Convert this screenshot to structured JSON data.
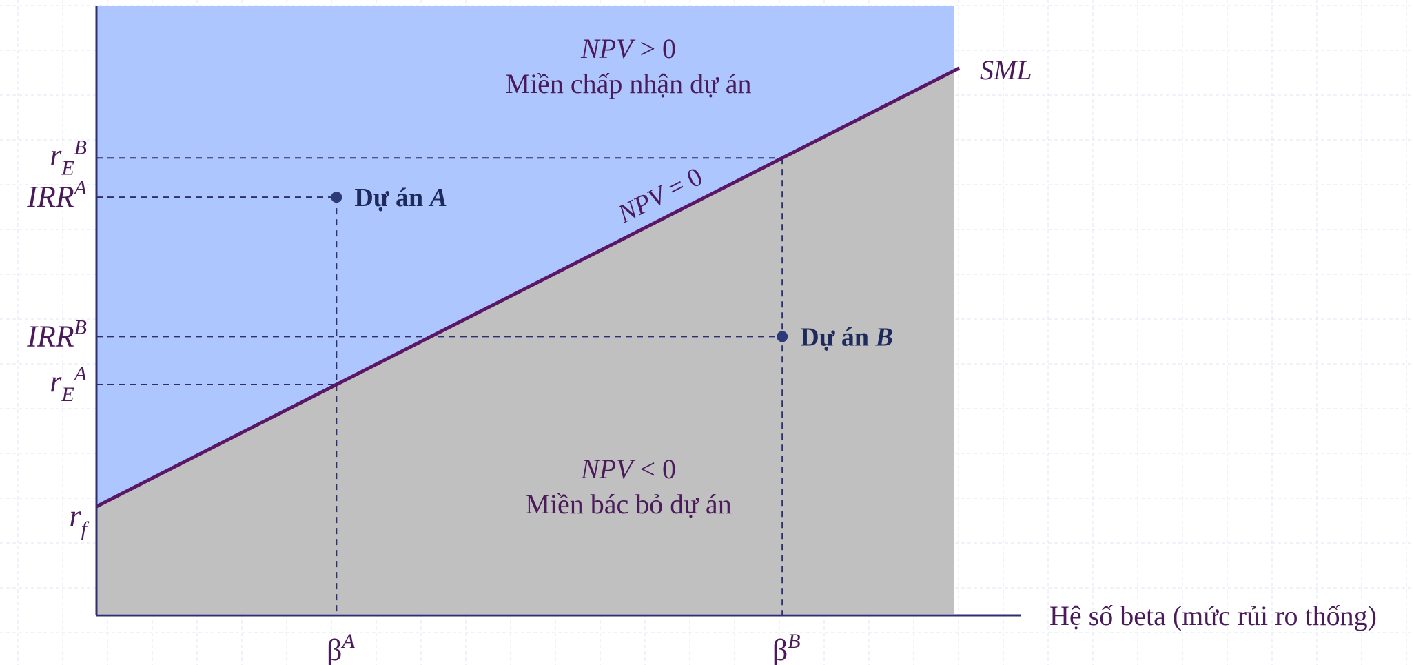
{
  "chart_data": {
    "type": "line",
    "title": "",
    "xlabel": "Hệ số beta (mức rủi ro thống)",
    "xlim": [
      0,
      2.0
    ],
    "ylim": [
      0,
      1.4
    ],
    "grid": true,
    "colors": {
      "accept_region": "#adc6fe",
      "reject_region": "#c0c0c0",
      "sml_line": "#5a1768",
      "axis": "#2d2f6e",
      "guides": "#2d2f6e",
      "points": "#2d3a7a",
      "label_text": "#4a1a5a",
      "project_text": "#1f2a5c"
    },
    "sml": {
      "name": "SML",
      "x": [
        0,
        2.0
      ],
      "y": [
        0.25,
        1.25
      ],
      "line_label": {
        "pre": "NPV",
        "post": " = 0",
        "x": 1.23,
        "y": 0.9
      }
    },
    "regions": {
      "upper": {
        "line1_pre": "NPV",
        "line1_post": " > 0",
        "line2": "Miền chấp nhận dự án"
      },
      "lower": {
        "line1_pre": "NPV",
        "line1_post": " < 0",
        "line2": "Miền bác bỏ dự án"
      }
    },
    "projects": [
      {
        "prefix": "Dự án ",
        "letter": "A",
        "beta": 0.56,
        "irr": 0.96,
        "beta_label": {
          "main": "β",
          "sup": "A"
        },
        "irr_label": {
          "main": "IRR",
          "sup": "A"
        },
        "re_label": {
          "main": "r",
          "sub": "E",
          "sup": "A"
        },
        "re_value": 0.53
      },
      {
        "prefix": "Dự án ",
        "letter": "B",
        "beta": 1.6,
        "irr": 0.64,
        "beta_label": {
          "main": "β",
          "sup": "B"
        },
        "irr_label": {
          "main": "IRR",
          "sup": "B"
        },
        "re_label": {
          "main": "r",
          "sub": "E",
          "sup": "B"
        },
        "re_value": 1.05
      }
    ],
    "rf_label": {
      "main": "r",
      "sub": "f"
    }
  }
}
